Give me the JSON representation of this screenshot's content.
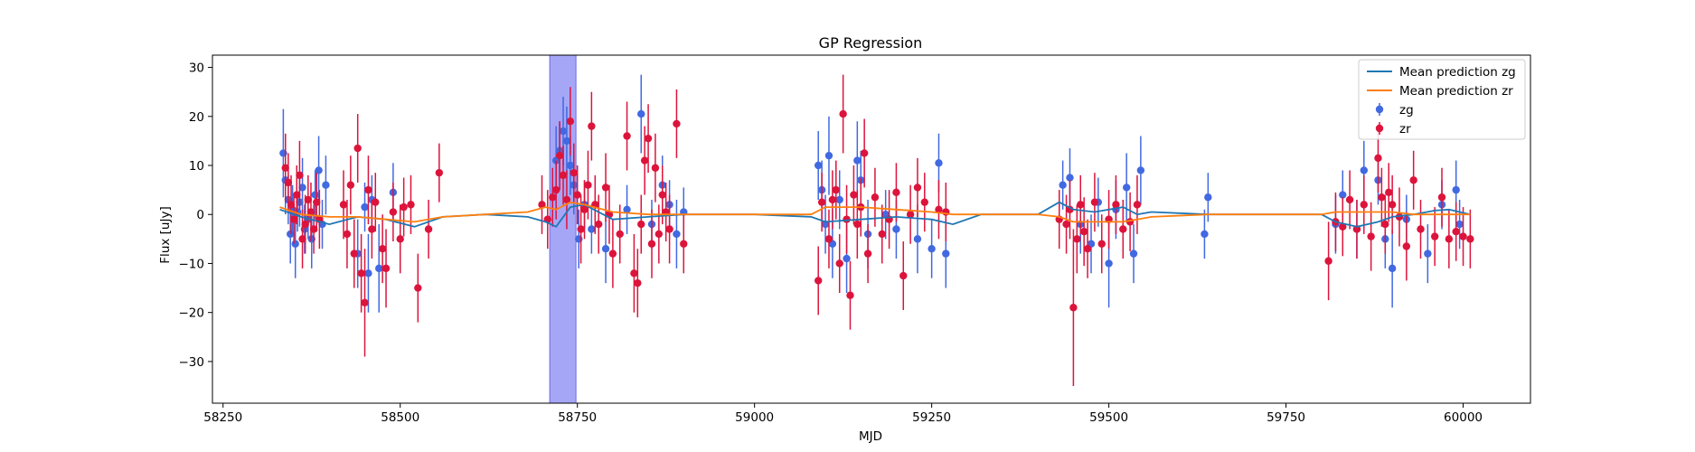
{
  "chart_data": {
    "type": "scatter",
    "title": "GP Regression",
    "xlabel": "MJD",
    "ylabel": "Flux [uJy]",
    "xlim": [
      58235,
      60095
    ],
    "ylim": [
      -38.5,
      32.5
    ],
    "xticks": [
      58250,
      58500,
      58750,
      59000,
      59250,
      59500,
      59750,
      60000
    ],
    "yticks": [
      -30,
      -20,
      -10,
      0,
      10,
      20,
      30
    ],
    "grid": false,
    "legend_position": "top-right",
    "highlight_band": {
      "x0": 58711,
      "x1": 58748,
      "color": "#a6a6f7"
    },
    "series": [
      {
        "name": "Mean prediction zg",
        "kind": "line",
        "color": "#1f77b4",
        "x": [
          58330,
          58360,
          58400,
          58440,
          58480,
          58520,
          58560,
          58620,
          58680,
          58705,
          58720,
          58740,
          58760,
          58800,
          58850,
          58900,
          59000,
          59080,
          59100,
          59150,
          59200,
          59250,
          59280,
          59320,
          59400,
          59430,
          59450,
          59480,
          59520,
          59540,
          59560,
          59640,
          59700,
          59800,
          59820,
          59850,
          59880,
          59900,
          59930,
          59960,
          59980,
          60010
        ],
        "y": [
          1.0,
          -0.5,
          -2.0,
          -0.5,
          -1.0,
          -2.5,
          -0.5,
          0.0,
          -0.5,
          -1.5,
          -2.5,
          1.5,
          2.0,
          -1.0,
          -0.5,
          0.0,
          0.0,
          -0.5,
          -1.5,
          -1.0,
          -0.5,
          -1.0,
          -2.0,
          0.0,
          0.0,
          2.5,
          1.0,
          0.5,
          1.5,
          0.0,
          0.5,
          0.0,
          0.0,
          0.0,
          -1.5,
          -2.5,
          -1.5,
          -0.5,
          0.0,
          0.8,
          1.0,
          0.0
        ]
      },
      {
        "name": "Mean prediction zr",
        "kind": "line",
        "color": "#ff7f0e",
        "x": [
          58330,
          58360,
          58400,
          58440,
          58480,
          58520,
          58560,
          58620,
          58680,
          58705,
          58720,
          58740,
          58760,
          58800,
          58850,
          58900,
          59000,
          59080,
          59100,
          59150,
          59200,
          59250,
          59280,
          59320,
          59400,
          59430,
          59450,
          59480,
          59520,
          59540,
          59560,
          59640,
          59700,
          59800,
          59820,
          59850,
          59880,
          59900,
          59930,
          59960,
          59980,
          60010
        ],
        "y": [
          1.5,
          0.0,
          -0.5,
          -0.5,
          -1.0,
          -1.5,
          -0.5,
          0.0,
          0.5,
          1.5,
          1.0,
          2.5,
          2.0,
          0.5,
          0.0,
          0.0,
          0.0,
          0.0,
          1.5,
          1.5,
          1.0,
          0.5,
          0.0,
          0.0,
          0.0,
          -0.5,
          -1.5,
          -1.5,
          -1.5,
          -1.0,
          -0.5,
          0.0,
          0.0,
          0.0,
          0.5,
          0.5,
          0.5,
          0.5,
          0.0,
          0.0,
          0.0,
          0.0
        ]
      },
      {
        "name": "zg",
        "kind": "errorbar",
        "color": "#4169e1",
        "x": [
          58335,
          58338,
          58342,
          58345,
          58348,
          58352,
          58355,
          58358,
          58362,
          58365,
          58370,
          58375,
          58380,
          58385,
          58390,
          58395,
          58440,
          58450,
          58455,
          58460,
          58470,
          58490,
          58720,
          58725,
          58730,
          58735,
          58740,
          58745,
          58752,
          58760,
          58770,
          58790,
          58820,
          58840,
          58855,
          58870,
          58880,
          58890,
          58900,
          59090,
          59095,
          59100,
          59105,
          59110,
          59120,
          59130,
          59145,
          59150,
          59160,
          59185,
          59200,
          59230,
          59250,
          59260,
          59270,
          59435,
          59445,
          59460,
          59475,
          59485,
          59500,
          59510,
          59525,
          59535,
          59545,
          59635,
          59640,
          59820,
          59830,
          59850,
          59860,
          59880,
          59890,
          59900,
          59920,
          59950,
          59970,
          59990,
          59995
        ],
        "y": [
          12.5,
          7.0,
          3.0,
          -4.0,
          1.0,
          -6.0,
          0.5,
          2.5,
          5.5,
          -3.0,
          -1.0,
          -5.0,
          4.0,
          9.0,
          -2.0,
          6.0,
          -8.0,
          1.5,
          -12.0,
          3.0,
          -11.0,
          4.5,
          11.0,
          13.0,
          17.0,
          15.0,
          10.0,
          6.0,
          -5.0,
          2.0,
          -3.0,
          -7.0,
          1.0,
          20.5,
          -2.0,
          6.0,
          2.0,
          -4.0,
          0.5,
          10.0,
          5.0,
          -2.0,
          12.0,
          -6.0,
          3.0,
          -9.0,
          11.0,
          7.0,
          -4.0,
          0.0,
          -3.0,
          -5.0,
          -7.0,
          10.5,
          -8.0,
          6.0,
          7.5,
          -2.0,
          -6.0,
          2.5,
          -10.0,
          1.0,
          5.5,
          -8.0,
          9.0,
          -4.0,
          3.5,
          -2.0,
          4.0,
          -3.0,
          9.0,
          7.0,
          -5.0,
          -11.0,
          -1.0,
          -8.0,
          2.0,
          5.0,
          -2.0
        ],
        "err": [
          9,
          7,
          5,
          6,
          5,
          7,
          4,
          5,
          6,
          5,
          4,
          6,
          5,
          7,
          5,
          6,
          7,
          5,
          8,
          5,
          9,
          6,
          7,
          6,
          7,
          7,
          6,
          6,
          6,
          5,
          5,
          7,
          5,
          8,
          5,
          6,
          5,
          7,
          5,
          7,
          6,
          6,
          8,
          7,
          6,
          7,
          8,
          6,
          7,
          5,
          6,
          7,
          6,
          6,
          7,
          5,
          6,
          6,
          6,
          5,
          9,
          6,
          7,
          6,
          7,
          5,
          5,
          6,
          5,
          6,
          6,
          5,
          6,
          8,
          5,
          6,
          5,
          6,
          5
        ]
      },
      {
        "name": "zr",
        "kind": "errorbar",
        "color": "#dc143c",
        "x": [
          58338,
          58342,
          58346,
          58350,
          58354,
          58358,
          58362,
          58366,
          58370,
          58374,
          58378,
          58382,
          58386,
          58420,
          58425,
          58430,
          58435,
          58440,
          58445,
          58450,
          58455,
          58460,
          58465,
          58475,
          58480,
          58490,
          58500,
          58505,
          58515,
          58525,
          58540,
          58555,
          58700,
          58708,
          58715,
          58720,
          58725,
          58730,
          58735,
          58740,
          58745,
          58750,
          58755,
          58760,
          58765,
          58770,
          58775,
          58780,
          58790,
          58795,
          58800,
          58810,
          58820,
          58830,
          58835,
          58840,
          58845,
          58850,
          58855,
          58860,
          58865,
          58870,
          58875,
          58880,
          58890,
          58900,
          59090,
          59095,
          59105,
          59110,
          59115,
          59120,
          59125,
          59130,
          59135,
          59140,
          59145,
          59150,
          59155,
          59160,
          59170,
          59180,
          59190,
          59200,
          59210,
          59220,
          59230,
          59240,
          59260,
          59270,
          59430,
          59440,
          59445,
          59450,
          59455,
          59460,
          59465,
          59470,
          59480,
          59490,
          59500,
          59510,
          59520,
          59530,
          59540,
          59810,
          59820,
          59830,
          59840,
          59850,
          59860,
          59870,
          59880,
          59885,
          59890,
          59895,
          59900,
          59910,
          59920,
          59930,
          59940,
          59960,
          59970,
          59980,
          59990,
          60000,
          60010
        ],
        "y": [
          9.5,
          6.5,
          2.0,
          -1.0,
          4.0,
          8.0,
          -5.0,
          -2.0,
          3.0,
          0.5,
          -3.0,
          2.5,
          -1.0,
          2.0,
          -4.0,
          6.0,
          -8.0,
          13.5,
          -12.0,
          -18.0,
          5.0,
          -3.0,
          2.5,
          -7.0,
          -11.0,
          0.5,
          -5.0,
          1.5,
          2.0,
          -15.0,
          -3.0,
          8.5,
          2.0,
          -1.0,
          3.5,
          5.0,
          12.0,
          8.0,
          3.0,
          19.0,
          8.5,
          4.0,
          -3.0,
          1.0,
          6.0,
          18.0,
          2.0,
          -2.0,
          5.5,
          0.0,
          -8.0,
          -4.0,
          16.0,
          -12.0,
          -14.0,
          -2.0,
          11.0,
          15.5,
          -6.0,
          9.5,
          -4.0,
          4.0,
          0.5,
          -3.0,
          18.5,
          -6.0,
          -13.5,
          2.5,
          -5.0,
          3.0,
          5.0,
          -10.0,
          20.5,
          -1.0,
          -16.5,
          4.0,
          -2.0,
          1.5,
          12.5,
          -8.0,
          3.5,
          -4.0,
          -1.0,
          4.5,
          -12.5,
          0.0,
          5.5,
          2.5,
          1.0,
          0.5,
          -1.0,
          -2.0,
          1.0,
          -19.0,
          -5.0,
          2.0,
          -3.5,
          -7.0,
          2.5,
          -6.0,
          -1.0,
          2.0,
          -3.0,
          -1.5,
          2.0,
          -9.5,
          -1.5,
          -2.5,
          3.0,
          -3.0,
          2.0,
          -4.5,
          11.5,
          3.5,
          -2.0,
          4.5,
          2.0,
          -0.5,
          -6.5,
          7.0,
          -3.0,
          -4.5,
          3.5,
          -5.0,
          -3.5,
          -4.5,
          -5.0
        ],
        "err": [
          7,
          6,
          6,
          5,
          6,
          7,
          6,
          6,
          5,
          6,
          5,
          6,
          6,
          7,
          7,
          6,
          7,
          7,
          8,
          11,
          7,
          6,
          6,
          7,
          8,
          6,
          7,
          6,
          6,
          7,
          6,
          6,
          6,
          6,
          6,
          6,
          7,
          6,
          6,
          7,
          6,
          6,
          7,
          6,
          7,
          7,
          6,
          6,
          7,
          6,
          7,
          6,
          7,
          8,
          7,
          6,
          7,
          7,
          7,
          7,
          6,
          6,
          6,
          7,
          7,
          6,
          7,
          6,
          6,
          6,
          6,
          6,
          8,
          7,
          7,
          6,
          7,
          6,
          7,
          6,
          6,
          6,
          6,
          6,
          7,
          6,
          6,
          6,
          6,
          6,
          6,
          6,
          6,
          16,
          7,
          6,
          7,
          6,
          6,
          6,
          6,
          6,
          6,
          6,
          6,
          8,
          6,
          6,
          6,
          6,
          6,
          7,
          7,
          6,
          6,
          6,
          6,
          6,
          7,
          6,
          6,
          6,
          6,
          6,
          6,
          6,
          6
        ]
      }
    ],
    "legend": [
      {
        "label": "Mean prediction zg",
        "symbol": "line",
        "color": "#1f77b4"
      },
      {
        "label": "Mean prediction zr",
        "symbol": "line",
        "color": "#ff7f0e"
      },
      {
        "label": "zg",
        "symbol": "errorbar",
        "color": "#4169e1"
      },
      {
        "label": "zr",
        "symbol": "errorbar",
        "color": "#dc143c"
      }
    ]
  }
}
